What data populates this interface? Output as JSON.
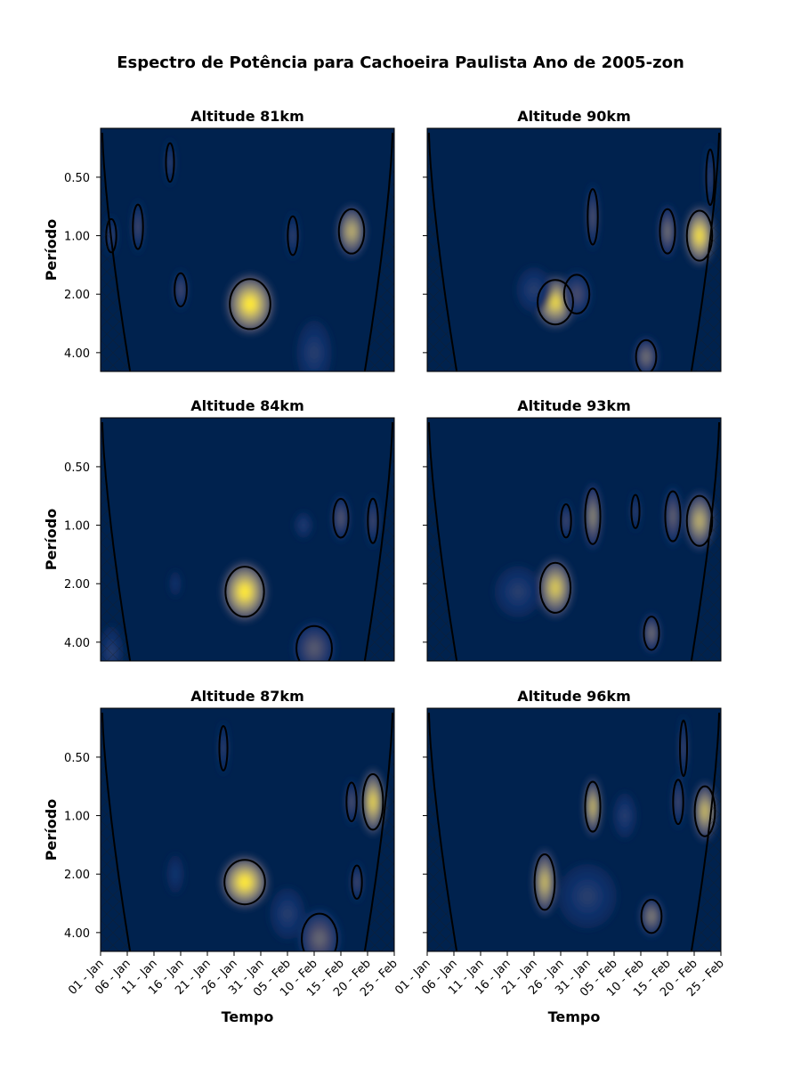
{
  "chart_data": {
    "type": "heatmap",
    "title": "Espectro de Potência para Cachoeira Paulista Ano de 2005-zon",
    "xlabel": "Tempo",
    "ylabel": "Período",
    "x_tick_labels": [
      "01 - Jan",
      "06 - Jan",
      "11 - Jan",
      "16 - Jan",
      "21 - Jan",
      "26 - Jan",
      "31 - Jan",
      "05 - Feb",
      "10 - Feb",
      "15 - Feb",
      "20 - Feb",
      "25 - Feb"
    ],
    "x_range_days": [
      0,
      55
    ],
    "y_tick_labels": [
      "0.50",
      "1.00",
      "2.00",
      "4.00"
    ],
    "y_tick_values": [
      0.5,
      1.0,
      2.0,
      4.0
    ],
    "y_scale": "log2",
    "y_range": [
      0.28,
      5.0
    ],
    "colormap": "cividis",
    "cone_of_influence": true,
    "panels": [
      {
        "title": "Altitude 81km",
        "peaks": [
          {
            "day": 28,
            "period": 2.25,
            "amplitude": 1.0,
            "width_days": 4.0,
            "height_log2": 0.45
          },
          {
            "day": 47,
            "period": 0.95,
            "amplitude": 0.75,
            "width_days": 2.5,
            "height_log2": 0.4
          },
          {
            "day": 15,
            "period": 1.9,
            "amplitude": 0.35,
            "width_days": 1.2,
            "height_log2": 0.3
          },
          {
            "day": 7,
            "period": 0.9,
            "amplitude": 0.35,
            "width_days": 1.0,
            "height_log2": 0.4
          },
          {
            "day": 2,
            "period": 1.0,
            "amplitude": 0.3,
            "width_days": 1.0,
            "height_log2": 0.3
          },
          {
            "day": 36,
            "period": 1.0,
            "amplitude": 0.3,
            "width_days": 1.0,
            "height_log2": 0.35
          },
          {
            "day": 13,
            "period": 0.42,
            "amplitude": 0.3,
            "width_days": 0.8,
            "height_log2": 0.35
          },
          {
            "day": 40,
            "period": 4.0,
            "amplitude": 0.25,
            "width_days": 3.0,
            "height_log2": 0.5
          }
        ]
      },
      {
        "title": "Altitude 90km",
        "peaks": [
          {
            "day": 24,
            "period": 2.2,
            "amplitude": 0.9,
            "width_days": 3.5,
            "height_log2": 0.4
          },
          {
            "day": 51,
            "period": 1.0,
            "amplitude": 0.95,
            "width_days": 2.5,
            "height_log2": 0.45
          },
          {
            "day": 45,
            "period": 0.95,
            "amplitude": 0.5,
            "width_days": 1.5,
            "height_log2": 0.4
          },
          {
            "day": 41,
            "period": 4.2,
            "amplitude": 0.5,
            "width_days": 2.0,
            "height_log2": 0.3
          },
          {
            "day": 31,
            "period": 0.8,
            "amplitude": 0.4,
            "width_days": 1.0,
            "height_log2": 0.5
          },
          {
            "day": 28,
            "period": 2.0,
            "amplitude": 0.35,
            "width_days": 2.5,
            "height_log2": 0.35
          },
          {
            "day": 20,
            "period": 1.9,
            "amplitude": 0.25,
            "width_days": 3.0,
            "height_log2": 0.35
          },
          {
            "day": 53,
            "period": 0.5,
            "amplitude": 0.3,
            "width_days": 0.8,
            "height_log2": 0.5
          }
        ]
      },
      {
        "title": "Altitude 84km",
        "peaks": [
          {
            "day": 27,
            "period": 2.2,
            "amplitude": 1.0,
            "width_days": 3.8,
            "height_log2": 0.45
          },
          {
            "day": 45,
            "period": 0.92,
            "amplitude": 0.4,
            "width_days": 1.5,
            "height_log2": 0.35
          },
          {
            "day": 51,
            "period": 0.95,
            "amplitude": 0.35,
            "width_days": 1.0,
            "height_log2": 0.4
          },
          {
            "day": 40,
            "period": 4.3,
            "amplitude": 0.4,
            "width_days": 3.5,
            "height_log2": 0.4
          },
          {
            "day": 38,
            "period": 1.0,
            "amplitude": 0.25,
            "width_days": 1.5,
            "height_log2": 0.2
          },
          {
            "day": 14,
            "period": 2.0,
            "amplitude": 0.2,
            "width_days": 1.0,
            "height_log2": 0.2
          },
          {
            "day": 2,
            "period": 4.5,
            "amplitude": 0.25,
            "width_days": 2.0,
            "height_log2": 0.4
          }
        ]
      },
      {
        "title": "Altitude 93km",
        "peaks": [
          {
            "day": 24,
            "period": 2.1,
            "amplitude": 0.85,
            "width_days": 3.0,
            "height_log2": 0.45
          },
          {
            "day": 51,
            "period": 0.95,
            "amplitude": 0.75,
            "width_days": 2.5,
            "height_log2": 0.45
          },
          {
            "day": 31,
            "period": 0.9,
            "amplitude": 0.6,
            "width_days": 1.5,
            "height_log2": 0.5
          },
          {
            "day": 46,
            "period": 0.9,
            "amplitude": 0.45,
            "width_days": 1.5,
            "height_log2": 0.45
          },
          {
            "day": 42,
            "period": 3.6,
            "amplitude": 0.5,
            "width_days": 1.5,
            "height_log2": 0.3
          },
          {
            "day": 17,
            "period": 2.2,
            "amplitude": 0.25,
            "width_days": 4.0,
            "height_log2": 0.4
          },
          {
            "day": 26,
            "period": 0.95,
            "amplitude": 0.35,
            "width_days": 1.0,
            "height_log2": 0.3
          },
          {
            "day": 39,
            "period": 0.85,
            "amplitude": 0.3,
            "width_days": 0.8,
            "height_log2": 0.3
          }
        ]
      },
      {
        "title": "Altitude 87km",
        "peaks": [
          {
            "day": 27,
            "period": 2.2,
            "amplitude": 1.0,
            "width_days": 4.0,
            "height_log2": 0.4
          },
          {
            "day": 51,
            "period": 0.85,
            "amplitude": 0.9,
            "width_days": 2.0,
            "height_log2": 0.5
          },
          {
            "day": 47,
            "period": 0.85,
            "amplitude": 0.4,
            "width_days": 1.0,
            "height_log2": 0.35
          },
          {
            "day": 41,
            "period": 4.3,
            "amplitude": 0.45,
            "width_days": 3.5,
            "height_log2": 0.45
          },
          {
            "day": 48,
            "period": 2.2,
            "amplitude": 0.35,
            "width_days": 1.0,
            "height_log2": 0.3
          },
          {
            "day": 14,
            "period": 2.0,
            "amplitude": 0.2,
            "width_days": 1.5,
            "height_log2": 0.3
          },
          {
            "day": 35,
            "period": 3.2,
            "amplitude": 0.25,
            "width_days": 3.0,
            "height_log2": 0.4
          },
          {
            "day": 23,
            "period": 0.45,
            "amplitude": 0.3,
            "width_days": 0.8,
            "height_log2": 0.4
          }
        ]
      },
      {
        "title": "Altitude 96km",
        "peaks": [
          {
            "day": 22,
            "period": 2.2,
            "amplitude": 0.8,
            "width_days": 2.0,
            "height_log2": 0.5
          },
          {
            "day": 31,
            "period": 0.9,
            "amplitude": 0.8,
            "width_days": 1.5,
            "height_log2": 0.45
          },
          {
            "day": 52,
            "period": 0.95,
            "amplitude": 0.8,
            "width_days": 2.0,
            "height_log2": 0.45
          },
          {
            "day": 42,
            "period": 3.3,
            "amplitude": 0.55,
            "width_days": 2.0,
            "height_log2": 0.3
          },
          {
            "day": 47,
            "period": 0.85,
            "amplitude": 0.35,
            "width_days": 1.0,
            "height_log2": 0.4
          },
          {
            "day": 48,
            "period": 0.45,
            "amplitude": 0.35,
            "width_days": 0.7,
            "height_log2": 0.5
          },
          {
            "day": 30,
            "period": 2.6,
            "amplitude": 0.25,
            "width_days": 5.0,
            "height_log2": 0.5
          },
          {
            "day": 37,
            "period": 1.0,
            "amplitude": 0.25,
            "width_days": 2.0,
            "height_log2": 0.35
          }
        ]
      }
    ]
  }
}
